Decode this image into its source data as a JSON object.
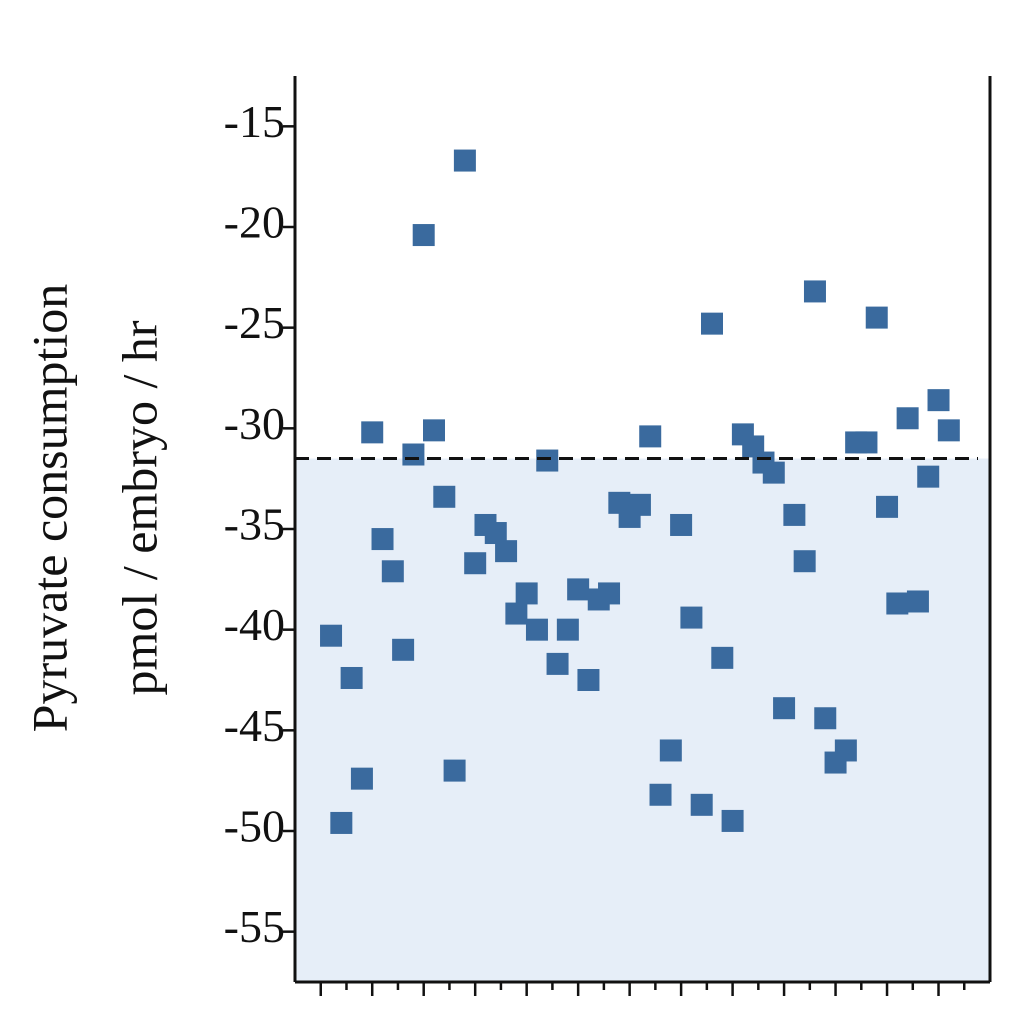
{
  "chart_data": {
    "type": "scatter",
    "ylabel": [
      "Pyruvate consumption",
      "pmol / embryo / hr"
    ],
    "x": [
      1.4,
      1.8,
      2.2,
      2.6,
      3.0,
      3.4,
      3.8,
      4.2,
      4.6,
      5.0,
      5.4,
      5.8,
      6.2,
      6.6,
      7.0,
      7.4,
      7.8,
      8.2,
      8.6,
      9.0,
      9.4,
      9.8,
      10.2,
      10.6,
      11.0,
      11.4,
      11.8,
      12.2,
      12.6,
      13.0,
      13.4,
      13.8,
      14.2,
      14.6,
      15.0,
      15.4,
      15.8,
      16.2,
      16.6,
      17.0,
      17.4,
      17.8,
      18.2,
      18.6,
      19.0,
      19.4,
      19.8,
      20.2,
      20.6,
      21.0,
      21.4,
      21.8,
      22.2,
      22.6,
      23.0,
      23.4,
      23.8,
      24.2,
      24.6,
      25.0,
      25.4
    ],
    "values": [
      -40.3,
      -49.6,
      -42.4,
      -47.4,
      -30.2,
      -35.5,
      -37.1,
      -41.0,
      -31.3,
      -20.4,
      -30.1,
      -33.4,
      -47.0,
      -16.7,
      -36.7,
      -34.8,
      -35.2,
      -36.1,
      -39.2,
      -38.2,
      -40.0,
      -31.6,
      -41.7,
      -40.0,
      -38.0,
      -42.5,
      -38.5,
      -38.2,
      -33.7,
      -34.4,
      -33.8,
      -30.4,
      -48.2,
      -46.0,
      -34.8,
      -39.4,
      -48.7,
      -24.8,
      -41.4,
      -49.5,
      -30.3,
      -30.9,
      -31.7,
      -32.2,
      -43.9,
      -34.3,
      -36.6,
      -23.2,
      -44.4,
      -46.6,
      -46.0,
      -30.7,
      -30.7,
      -24.5,
      -33.9,
      -38.7,
      -29.5,
      -38.6,
      -32.4,
      -28.6,
      -30.1
    ],
    "color": "#3a6a9e",
    "threshold": -31.5,
    "shade_color": "#e6eef8",
    "xlim": [
      0,
      27
    ],
    "xticks": [
      1,
      2,
      3,
      4,
      5,
      6,
      7,
      8,
      9,
      10,
      11,
      12,
      13,
      14,
      15,
      16,
      17,
      18,
      19,
      20,
      21,
      22,
      23,
      24,
      25,
      26
    ],
    "ylim": [
      -57.5,
      -12.5
    ],
    "yticks": [
      -55,
      -50,
      -45,
      -40,
      -35,
      -30,
      -25,
      -20,
      -15
    ]
  }
}
